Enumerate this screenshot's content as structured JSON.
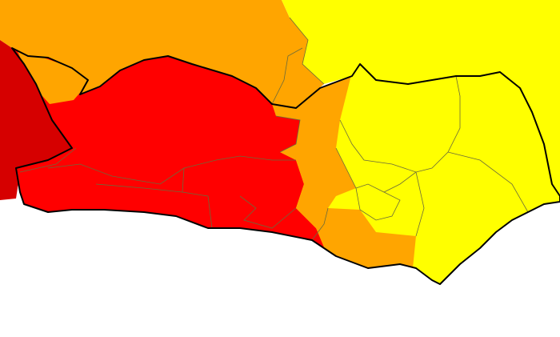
{
  "map": {
    "type": "choropleth",
    "colors": {
      "background": "#ffffff",
      "dark_red": "#d60000",
      "red": "#ff0000",
      "orange": "#ffa500",
      "yellow": "#ffff00",
      "border": "#000000",
      "district_line": "#6b6b3a"
    },
    "legend": null
  }
}
